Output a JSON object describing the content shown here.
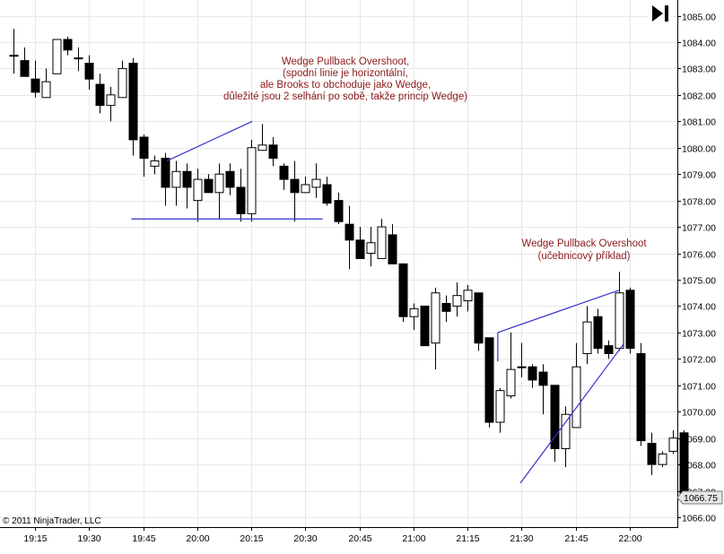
{
  "chart_data": {
    "type": "candlestick",
    "instrument_note": "",
    "y_range": [
      1065.6,
      1085.4
    ],
    "x_range_bars": [
      0,
      63
    ],
    "y_ticks": [
      "1066.00",
      "1067.00",
      "1068.00",
      "1069.00",
      "1070.00",
      "1071.00",
      "1072.00",
      "1073.00",
      "1074.00",
      "1075.00",
      "1076.00",
      "1077.00",
      "1078.00",
      "1079.00",
      "1080.00",
      "1081.00",
      "1082.00",
      "1083.00",
      "1084.00",
      "1085.00"
    ],
    "x_ticks": [
      {
        "label": "19:15",
        "bar": 2
      },
      {
        "label": "19:30",
        "bar": 7
      },
      {
        "label": "19:45",
        "bar": 12
      },
      {
        "label": "20:00",
        "bar": 17
      },
      {
        "label": "20:15",
        "bar": 22
      },
      {
        "label": "20:30",
        "bar": 27
      },
      {
        "label": "20:45",
        "bar": 32
      },
      {
        "label": "21:00",
        "bar": 37
      },
      {
        "label": "21:15",
        "bar": 42
      },
      {
        "label": "21:30",
        "bar": 47
      },
      {
        "label": "21:45",
        "bar": 52
      },
      {
        "label": "22:00",
        "bar": 57
      }
    ],
    "candles": [
      {
        "o": 1083.5,
        "h": 1084.5,
        "l": 1082.8,
        "c": 1083.5
      },
      {
        "o": 1083.3,
        "h": 1083.8,
        "l": 1082.7,
        "c": 1082.7
      },
      {
        "o": 1082.6,
        "h": 1083.3,
        "l": 1081.9,
        "c": 1082.1
      },
      {
        "o": 1081.9,
        "h": 1083.0,
        "l": 1081.9,
        "c": 1082.5
      },
      {
        "o": 1082.8,
        "h": 1084.1,
        "l": 1082.8,
        "c": 1084.1
      },
      {
        "o": 1084.1,
        "h": 1084.2,
        "l": 1083.5,
        "c": 1083.7
      },
      {
        "o": 1083.4,
        "h": 1083.8,
        "l": 1082.9,
        "c": 1083.4
      },
      {
        "o": 1083.2,
        "h": 1083.5,
        "l": 1082.2,
        "c": 1082.6
      },
      {
        "o": 1082.4,
        "h": 1082.8,
        "l": 1081.3,
        "c": 1081.6
      },
      {
        "o": 1081.6,
        "h": 1082.3,
        "l": 1081.0,
        "c": 1082.0
      },
      {
        "o": 1081.9,
        "h": 1083.3,
        "l": 1081.9,
        "c": 1083.0
      },
      {
        "o": 1083.2,
        "h": 1083.4,
        "l": 1079.7,
        "c": 1080.3
      },
      {
        "o": 1080.4,
        "h": 1080.5,
        "l": 1078.9,
        "c": 1079.6
      },
      {
        "o": 1079.3,
        "h": 1079.7,
        "l": 1079.0,
        "c": 1079.5
      },
      {
        "o": 1079.6,
        "h": 1079.8,
        "l": 1077.8,
        "c": 1078.5
      },
      {
        "o": 1078.5,
        "h": 1079.5,
        "l": 1077.8,
        "c": 1079.1
      },
      {
        "o": 1079.1,
        "h": 1079.4,
        "l": 1077.7,
        "c": 1078.5
      },
      {
        "o": 1078.0,
        "h": 1079.2,
        "l": 1077.2,
        "c": 1078.8
      },
      {
        "o": 1078.8,
        "h": 1079.0,
        "l": 1078.3,
        "c": 1078.3
      },
      {
        "o": 1078.3,
        "h": 1079.4,
        "l": 1077.3,
        "c": 1079.0
      },
      {
        "o": 1079.1,
        "h": 1079.4,
        "l": 1078.2,
        "c": 1078.5
      },
      {
        "o": 1078.5,
        "h": 1079.2,
        "l": 1077.2,
        "c": 1077.5
      },
      {
        "o": 1077.5,
        "h": 1080.3,
        "l": 1077.2,
        "c": 1080.0
      },
      {
        "o": 1079.9,
        "h": 1080.9,
        "l": 1079.9,
        "c": 1080.1
      },
      {
        "o": 1080.1,
        "h": 1080.4,
        "l": 1079.3,
        "c": 1079.6
      },
      {
        "o": 1079.3,
        "h": 1079.4,
        "l": 1078.4,
        "c": 1078.8
      },
      {
        "o": 1078.8,
        "h": 1079.5,
        "l": 1077.2,
        "c": 1078.3
      },
      {
        "o": 1078.3,
        "h": 1078.9,
        "l": 1078.3,
        "c": 1078.6
      },
      {
        "o": 1078.5,
        "h": 1079.4,
        "l": 1078.1,
        "c": 1078.8
      },
      {
        "o": 1078.6,
        "h": 1078.9,
        "l": 1077.8,
        "c": 1077.9
      },
      {
        "o": 1078.0,
        "h": 1078.3,
        "l": 1077.1,
        "c": 1077.2
      },
      {
        "o": 1077.1,
        "h": 1077.8,
        "l": 1075.4,
        "c": 1076.5
      },
      {
        "o": 1076.5,
        "h": 1077.0,
        "l": 1075.8,
        "c": 1075.8
      },
      {
        "o": 1076.0,
        "h": 1077.0,
        "l": 1075.5,
        "c": 1076.4
      },
      {
        "o": 1075.8,
        "h": 1077.3,
        "l": 1075.8,
        "c": 1077.0
      },
      {
        "o": 1076.7,
        "h": 1077.1,
        "l": 1075.6,
        "c": 1075.6
      },
      {
        "o": 1075.6,
        "h": 1075.6,
        "l": 1073.4,
        "c": 1073.6
      },
      {
        "o": 1073.6,
        "h": 1074.1,
        "l": 1073.1,
        "c": 1073.9
      },
      {
        "o": 1074.0,
        "h": 1074.0,
        "l": 1072.5,
        "c": 1072.5
      },
      {
        "o": 1072.6,
        "h": 1074.7,
        "l": 1071.6,
        "c": 1074.5
      },
      {
        "o": 1074.1,
        "h": 1074.4,
        "l": 1073.4,
        "c": 1073.8
      },
      {
        "o": 1074.0,
        "h": 1074.9,
        "l": 1073.6,
        "c": 1074.4
      },
      {
        "o": 1074.2,
        "h": 1074.8,
        "l": 1073.8,
        "c": 1074.6
      },
      {
        "o": 1074.5,
        "h": 1074.5,
        "l": 1072.3,
        "c": 1072.6
      },
      {
        "o": 1072.8,
        "h": 1072.8,
        "l": 1069.4,
        "c": 1069.6
      },
      {
        "o": 1069.6,
        "h": 1070.9,
        "l": 1069.2,
        "c": 1070.8
      },
      {
        "o": 1070.6,
        "h": 1073.0,
        "l": 1070.5,
        "c": 1071.6
      },
      {
        "o": 1071.7,
        "h": 1072.6,
        "l": 1071.3,
        "c": 1071.7
      },
      {
        "o": 1071.7,
        "h": 1071.8,
        "l": 1070.9,
        "c": 1071.2
      },
      {
        "o": 1071.5,
        "h": 1071.8,
        "l": 1069.9,
        "c": 1071.0
      },
      {
        "o": 1071.0,
        "h": 1071.0,
        "l": 1068.1,
        "c": 1068.6
      },
      {
        "o": 1068.6,
        "h": 1070.2,
        "l": 1067.9,
        "c": 1069.9
      },
      {
        "o": 1069.4,
        "h": 1072.6,
        "l": 1069.4,
        "c": 1071.7
      },
      {
        "o": 1072.2,
        "h": 1074.0,
        "l": 1071.8,
        "c": 1073.4
      },
      {
        "o": 1073.6,
        "h": 1073.9,
        "l": 1072.2,
        "c": 1072.4
      },
      {
        "o": 1072.5,
        "h": 1072.7,
        "l": 1072.0,
        "c": 1072.2
      },
      {
        "o": 1072.4,
        "h": 1075.3,
        "l": 1072.3,
        "c": 1074.5
      },
      {
        "o": 1074.6,
        "h": 1074.7,
        "l": 1072.2,
        "c": 1072.4
      },
      {
        "o": 1072.2,
        "h": 1072.6,
        "l": 1068.7,
        "c": 1068.9
      },
      {
        "o": 1068.8,
        "h": 1069.2,
        "l": 1067.6,
        "c": 1068.0
      },
      {
        "o": 1068.0,
        "h": 1068.5,
        "l": 1067.9,
        "c": 1068.4
      },
      {
        "o": 1068.5,
        "h": 1069.3,
        "l": 1068.4,
        "c": 1069.0
      },
      {
        "o": 1069.2,
        "h": 1069.3,
        "l": 1066.6,
        "c": 1066.8
      }
    ],
    "lines": [
      {
        "name": "wedge1-upper",
        "from": {
          "bar": 14.2,
          "y": 1079.5
        },
        "to": {
          "bar": 22.1,
          "y": 1081.0
        }
      },
      {
        "name": "wedge1-horizontal",
        "from": {
          "bar": 10.9,
          "y": 1077.3
        },
        "to": {
          "bar": 28.6,
          "y": 1077.3
        }
      },
      {
        "name": "wedge2-upper",
        "from": {
          "bar": 44.8,
          "y": 1073.0
        },
        "to": {
          "bar": 56.0,
          "y": 1074.6
        }
      },
      {
        "name": "wedge2-lower",
        "from": {
          "bar": 44.8,
          "y": 1073.0
        },
        "to": {
          "bar": 44.8,
          "y": 1071.9
        }
      },
      {
        "name": "wedge2-rising",
        "from": {
          "bar": 46.9,
          "y": 1067.3
        },
        "to": {
          "bar": 56.5,
          "y": 1072.6
        }
      }
    ],
    "annotations": [
      {
        "lines": [
          "Wedge Pullback Overshoot,",
          "(spodní linie je horizontální,",
          "ale Brooks to obchoduje jako Wedge,",
          "důležité jsou 2 selhání po sobě, takže princip Wedge)"
        ]
      },
      {
        "lines": [
          "Wedge Pullback Overshoot",
          "(učebnicový příklad)"
        ]
      }
    ],
    "last_price": "1066.75",
    "grid": true
  },
  "copyright": "© 2011 NinjaTrader, LLC",
  "toolbar": {
    "go_to_end_icon": "skip-to-end-icon"
  },
  "colors": {
    "bear_body": "#000000",
    "bull_body": "#ffffff",
    "trendline": "#3333cc",
    "annotation": "#8b1a1a",
    "grid": "#e8e8e8",
    "price_marker_bg": "#e6e6e6"
  }
}
